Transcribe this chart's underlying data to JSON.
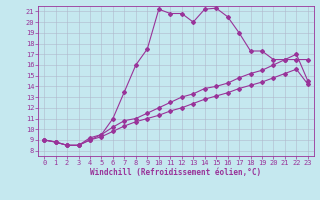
{
  "xlabel": "Windchill (Refroidissement éolien,°C)",
  "background_color": "#c5e8ef",
  "line_color": "#993399",
  "xlim": [
    -0.5,
    23.5
  ],
  "ylim": [
    7.5,
    21.5
  ],
  "xticks": [
    0,
    1,
    2,
    3,
    4,
    5,
    6,
    7,
    8,
    9,
    10,
    11,
    12,
    13,
    14,
    15,
    16,
    17,
    18,
    19,
    20,
    21,
    22,
    23
  ],
  "yticks": [
    8,
    9,
    10,
    11,
    12,
    13,
    14,
    15,
    16,
    17,
    18,
    19,
    20,
    21
  ],
  "line1_x": [
    0,
    1,
    2,
    3,
    4,
    5,
    6,
    7,
    8,
    9,
    10,
    11,
    12,
    13,
    14,
    15,
    16,
    17,
    18,
    19,
    20,
    21,
    22,
    23
  ],
  "line1_y": [
    9.0,
    8.8,
    8.5,
    8.5,
    9.2,
    9.5,
    11.0,
    13.5,
    16.0,
    17.5,
    21.2,
    20.8,
    20.8,
    20.0,
    21.2,
    21.3,
    20.5,
    19.0,
    17.3,
    17.3,
    16.5,
    16.5,
    16.5,
    16.5
  ],
  "line2_x": [
    0,
    1,
    2,
    3,
    4,
    5,
    6,
    7,
    8,
    9,
    10,
    11,
    12,
    13,
    14,
    15,
    16,
    17,
    18,
    19,
    20,
    21,
    22,
    23
  ],
  "line2_y": [
    9.0,
    8.8,
    8.5,
    8.5,
    9.0,
    9.5,
    10.2,
    10.8,
    11.0,
    11.5,
    12.0,
    12.5,
    13.0,
    13.3,
    13.8,
    14.0,
    14.3,
    14.8,
    15.2,
    15.5,
    16.0,
    16.5,
    17.0,
    14.5
  ],
  "line3_x": [
    0,
    1,
    2,
    3,
    4,
    5,
    6,
    7,
    8,
    9,
    10,
    11,
    12,
    13,
    14,
    15,
    16,
    17,
    18,
    19,
    20,
    21,
    22,
    23
  ],
  "line3_y": [
    9.0,
    8.8,
    8.5,
    8.5,
    9.0,
    9.3,
    9.8,
    10.3,
    10.7,
    11.0,
    11.3,
    11.7,
    12.0,
    12.4,
    12.8,
    13.1,
    13.4,
    13.8,
    14.1,
    14.4,
    14.8,
    15.2,
    15.6,
    14.2
  ],
  "grid_color": "#b0b8cc",
  "marker": "D",
  "markersize": 2.0,
  "linewidth": 0.8,
  "tick_fontsize": 5.0,
  "xlabel_fontsize": 5.5
}
